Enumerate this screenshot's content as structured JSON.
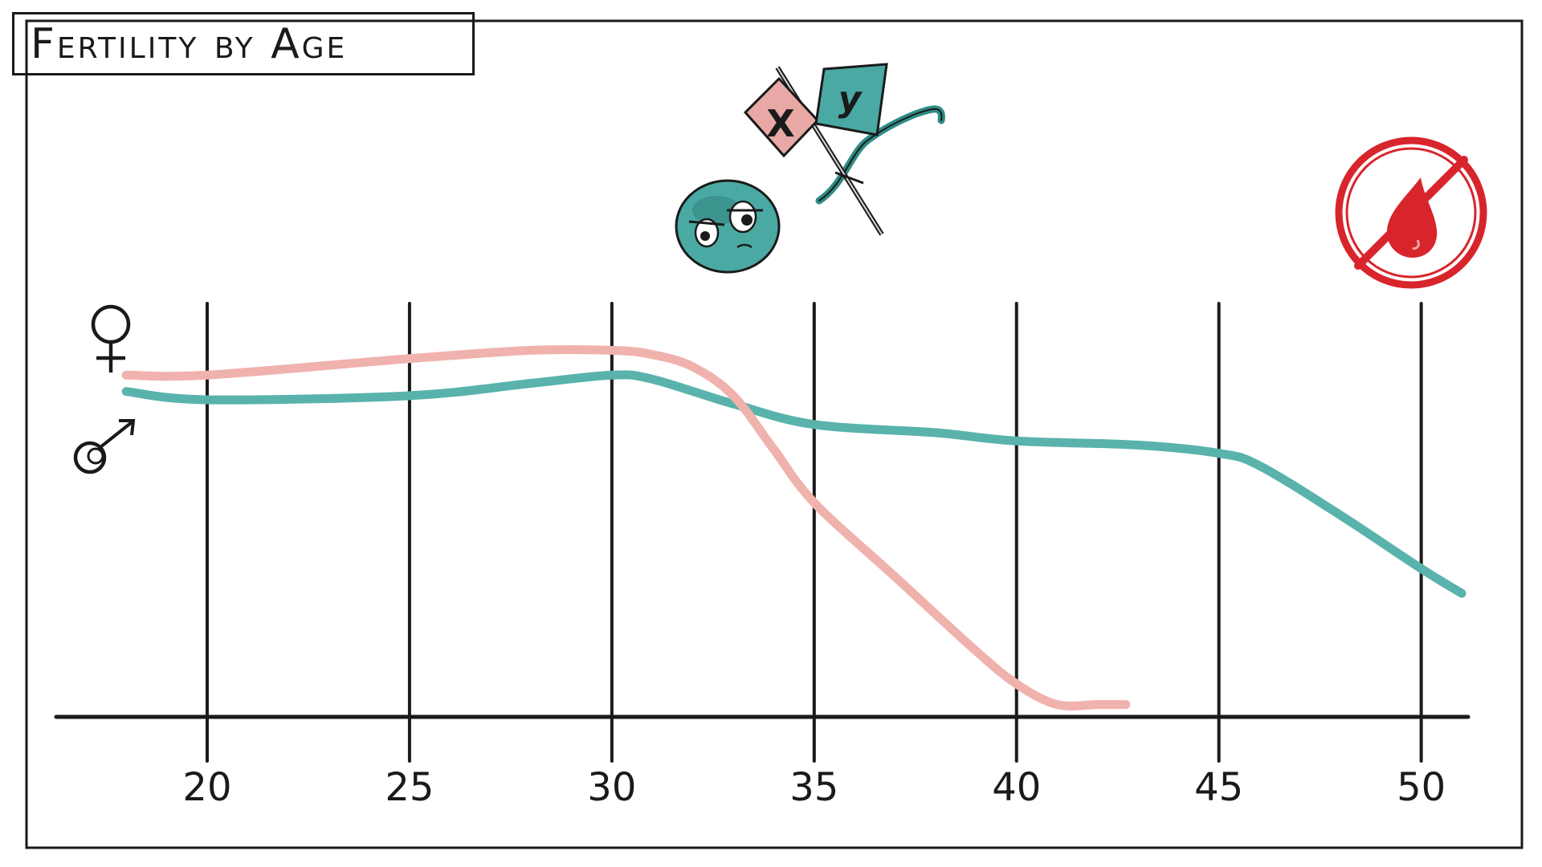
{
  "title": "Fertility by Age",
  "colors": {
    "female": "#f0b2ad",
    "male": "#59b3ac",
    "ink": "#1a1a1a",
    "no_period": "#d8252b"
  },
  "icons": [
    "female-symbol-icon",
    "male-symbol-icon",
    "sperm-xy-flags-icon",
    "no-menstruation-icon"
  ],
  "chart_data": {
    "type": "line",
    "title": "Fertility by Age",
    "xlabel": "",
    "ylabel": "",
    "x_ticks": [
      20,
      25,
      30,
      35,
      40,
      45,
      50
    ],
    "xlim": [
      17.5,
      51
    ],
    "ylim": [
      0,
      100
    ],
    "grid": "vertical",
    "legend": "left (symbols ♀ and ♂)",
    "series": [
      {
        "name": "♀",
        "x": [
          18,
          20,
          25,
          28,
          30,
          31,
          32,
          33,
          34,
          35,
          37,
          39,
          40,
          41,
          42,
          42.7
        ],
        "y": [
          83,
          83,
          87,
          89,
          89,
          88,
          85,
          78,
          65,
          52,
          34,
          16,
          8,
          3,
          3,
          3
        ]
      },
      {
        "name": "♂",
        "x": [
          18,
          20,
          25,
          28,
          30,
          31,
          33,
          35,
          38,
          40,
          43,
          45,
          46,
          48,
          50,
          51
        ],
        "y": [
          79,
          77,
          78,
          81,
          83,
          82,
          76,
          71,
          69,
          67,
          66,
          64,
          61,
          49,
          36,
          30
        ]
      }
    ]
  }
}
